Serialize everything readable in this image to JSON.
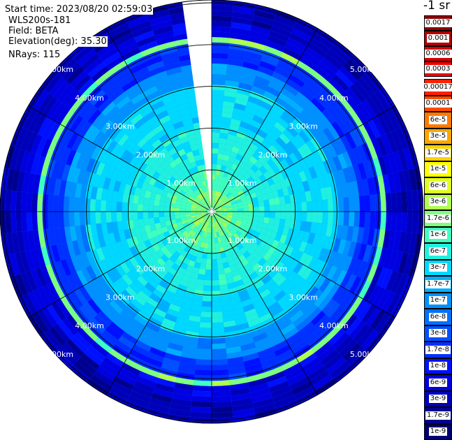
{
  "header": {
    "start_time": "Start time: 2023/08/20 02:59:03",
    "instrument": "WLS200s-181",
    "field": "Field: BETA",
    "elevation": "Elevation(deg): 35.30",
    "nrays": "NRays: 115"
  },
  "unit_title": "-1 sr",
  "chart_data": {
    "type": "heatmap",
    "projection": "polar-ppi",
    "field": "BETA",
    "elevation_deg": 35.3,
    "n_rays": 115,
    "range_km_max": 5.5,
    "range_rings_km": [
      1.0,
      2.0,
      3.0,
      4.0,
      5.0
    ],
    "ring_labels": [
      "1.00km",
      "2.00km",
      "3.00km",
      "4.00km",
      "5.00km"
    ],
    "spokes_deg": [
      0,
      30,
      60,
      90,
      120,
      150,
      180,
      210,
      240,
      270,
      300,
      330
    ],
    "missing_sector_deg": [
      352,
      360
    ],
    "profile": [
      {
        "range_km": 0.5,
        "beta": "1.7e-6"
      },
      {
        "range_km": 1.0,
        "beta": "1e-6"
      },
      {
        "range_km": 2.0,
        "beta": "6e-7"
      },
      {
        "range_km": 3.0,
        "beta": "3e-7"
      },
      {
        "range_km": 3.5,
        "beta": "1e-7"
      },
      {
        "range_km": 4.0,
        "beta": "1.7e-8"
      },
      {
        "range_km": 4.15,
        "beta": "1.7e-6"
      },
      {
        "range_km": 4.6,
        "beta": "6e-9"
      },
      {
        "range_km": 5.5,
        "beta": "3e-9"
      }
    ],
    "colorbar": [
      {
        "label": "0.0017",
        "color": "#8b0000",
        "text": "#000000",
        "group": 1
      },
      {
        "label": "0.001",
        "color": "#b20000",
        "text": "#000000",
        "group": 1
      },
      {
        "label": "0.0006",
        "color": "#d40000",
        "text": "#000000",
        "group": 1
      },
      {
        "label": "0.0003",
        "color": "#ee0000",
        "text": "#000000",
        "group": 1
      },
      {
        "label": "0.00017",
        "color": "#ff2000",
        "text": "#000000",
        "group": 2
      },
      {
        "label": "0.0001",
        "color": "#ff4a00",
        "text": "#000000",
        "group": 2
      },
      {
        "label": "6e-5",
        "color": "#ff7800",
        "text": "#000000",
        "group": 2
      },
      {
        "label": "3e-5",
        "color": "#ffa500",
        "text": "#000000",
        "group": 2
      },
      {
        "label": "1.7e-5",
        "color": "#ffd000",
        "text": "#000000",
        "group": 2
      },
      {
        "label": "1e-5",
        "color": "#ffff00",
        "text": "#000000",
        "group": 2
      },
      {
        "label": "6e-6",
        "color": "#e0ff20",
        "text": "#000000",
        "group": 2
      },
      {
        "label": "3e-6",
        "color": "#b0ff50",
        "text": "#000000",
        "group": 2
      },
      {
        "label": "1.7e-6",
        "color": "#7fff7f",
        "text": "#000000",
        "group": 2
      },
      {
        "label": "1e-6",
        "color": "#40ffbf",
        "text": "#000000",
        "group": 2
      },
      {
        "label": "6e-7",
        "color": "#20f0e0",
        "text": "#000000",
        "group": 2
      },
      {
        "label": "3e-7",
        "color": "#00d8ff",
        "text": "#000000",
        "group": 2
      },
      {
        "label": "1.7e-7",
        "color": "#00b0ff",
        "text": "#000000",
        "group": 2
      },
      {
        "label": "1e-7",
        "color": "#0090ff",
        "text": "#000000",
        "group": 2
      },
      {
        "label": "6e-8",
        "color": "#0070ff",
        "text": "#000000",
        "group": 2
      },
      {
        "label": "3e-8",
        "color": "#0050ff",
        "text": "#000000",
        "group": 2
      },
      {
        "label": "1.7e-8",
        "color": "#0030ff",
        "text": "#000000",
        "group": 2
      },
      {
        "label": "1e-8",
        "color": "#0010ff",
        "text": "#000000",
        "group": 2
      },
      {
        "label": "6e-9",
        "color": "#0000e0",
        "text": "#000000",
        "group": 2
      },
      {
        "label": "3e-9",
        "color": "#0000b8",
        "text": "#000000",
        "group": 2
      },
      {
        "label": "1.7e-9",
        "color": "#000090",
        "text": "#000000",
        "group": 2
      },
      {
        "label": "1e-9",
        "color": "#000070",
        "text": "#000000",
        "group": 2
      }
    ]
  }
}
